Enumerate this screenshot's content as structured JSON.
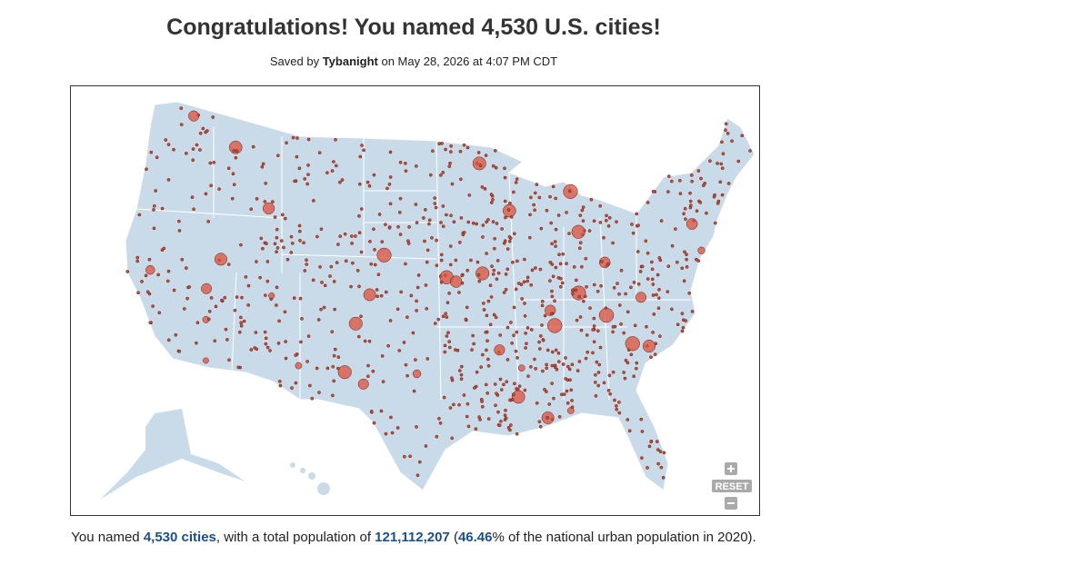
{
  "header": {
    "title": "Congratulations! You named 4,530 U.S. cities!",
    "saved_prefix": "Saved by",
    "user": "Tybanight",
    "saved_suffix": "on May 28, 2026 at 4:07 PM CDT"
  },
  "map": {
    "reset": "RESET"
  },
  "summary": {
    "part1": "You named",
    "cities": "4,530 cities",
    "part2": ", with a total population of",
    "population": "121,112,207",
    "part3": "(",
    "percent": "46.46",
    "part4": "% of the national urban population in 2020)."
  }
}
